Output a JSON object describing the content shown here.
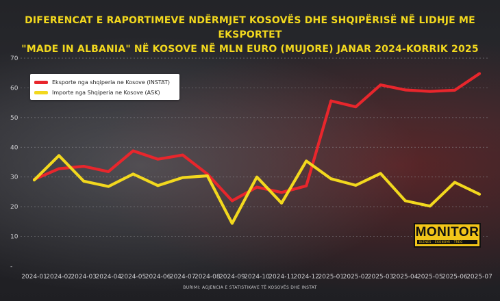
{
  "title": {
    "line1": "DIFERENCAT E RAPORTIMEVE NDËRMJET KOSOVËS DHE SHQIPËRISË NË LIDHJE ME EKSPORTET",
    "line2": "\"MADE IN ALBANIA\" NË KOSOVE NË MLN EURO (MUJORE) JANAR 2024-KORRIK 2025"
  },
  "source": "BURIMI: AGJENCIA E STATISTIKAVE TË KOSOVËS DHE INSTAT",
  "logo": {
    "name": "MONITOR",
    "tagline": "BIZNES · EKONOMI · TREG",
    "color": "#f2c519"
  },
  "chart_data": {
    "type": "line",
    "x": [
      "2024-01",
      "2024-02",
      "2024-03",
      "2024-04",
      "2024-05",
      "2024-06",
      "2024-07",
      "2024-08",
      "2024-09",
      "2024-10",
      "2024-11",
      "2024-12",
      "2025-01",
      "2025-02",
      "2025-03",
      "2025-04",
      "2025-05",
      "2025-06",
      "2025-07"
    ],
    "ylim": [
      0,
      70
    ],
    "yticks": [
      "-",
      "10",
      "20",
      "30",
      "40",
      "50",
      "60",
      "70"
    ],
    "grid": true,
    "legend_position": "top-left",
    "series": [
      {
        "name": "Eksporte nga shqiperia ne Kosove (INSTAT)",
        "color": "#e8262c",
        "values": [
          29.2,
          32.8,
          33.6,
          31.8,
          38.8,
          36.0,
          37.4,
          31.0,
          22.0,
          26.6,
          24.8,
          27.0,
          55.6,
          53.6,
          61.0,
          59.3,
          58.8,
          59.2,
          64.8
        ]
      },
      {
        "name": "Importe nga Shqiperia ne Kosove (ASK)",
        "color": "#f2d81e",
        "values": [
          29.0,
          37.2,
          28.6,
          26.8,
          31.0,
          27.1,
          29.8,
          30.4,
          14.4,
          30.0,
          21.2,
          35.4,
          29.4,
          27.2,
          31.2,
          22.0,
          20.2,
          28.2,
          24.2
        ]
      }
    ]
  }
}
